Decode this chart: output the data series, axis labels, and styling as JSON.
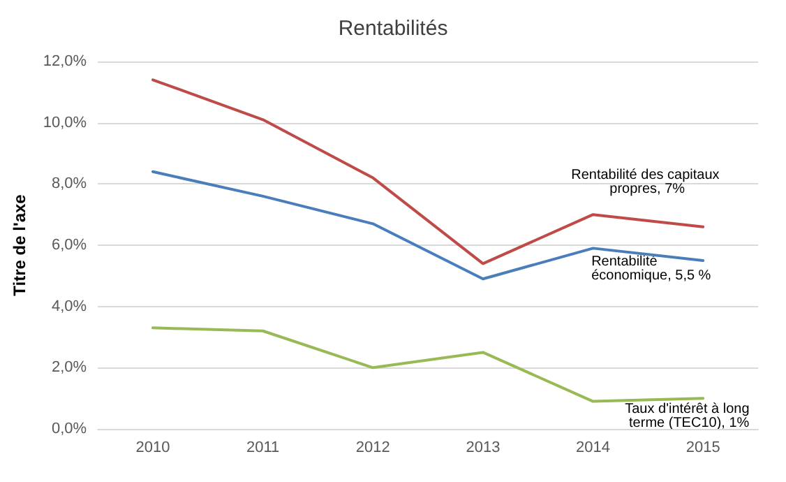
{
  "chart_data": {
    "type": "line",
    "title": "Rentabilités",
    "ylabel": "Titre de l'axe",
    "categories": [
      "2010",
      "2011",
      "2012",
      "2013",
      "2014",
      "2015"
    ],
    "series": [
      {
        "color": "#be4b48",
        "values": [
          11.4,
          10.1,
          8.2,
          5.4,
          7.0,
          6.6
        ]
      },
      {
        "color": "#4a7ebb",
        "values": [
          8.4,
          7.6,
          6.7,
          4.9,
          5.9,
          5.5
        ]
      },
      {
        "color": "#98b954",
        "values": [
          3.3,
          3.2,
          2.0,
          2.5,
          0.9,
          1.0
        ]
      }
    ],
    "ylim": [
      0,
      12
    ],
    "yticks": [
      {
        "value": 0,
        "label": "0,0%"
      },
      {
        "value": 2,
        "label": "2,0%"
      },
      {
        "value": 4,
        "label": "4,0%"
      },
      {
        "value": 6,
        "label": "6,0%"
      },
      {
        "value": 8,
        "label": "8,0%"
      },
      {
        "value": 10,
        "label": "10,0%"
      },
      {
        "value": 12,
        "label": "12,0%"
      }
    ],
    "grid": "y",
    "marker": "none",
    "line_style": "solid",
    "annotations": [
      {
        "text": "Rentabilité des capitaux propres, 7%",
        "x": "2015",
        "y": 6.6
      },
      {
        "text": "Rentabilité économique, 5,5 %",
        "x": "2015",
        "y": 5.5
      },
      {
        "text": "Taux d'intérêt à long terme (TEC10), 1%",
        "x": "2015",
        "y": 1.0
      }
    ]
  }
}
